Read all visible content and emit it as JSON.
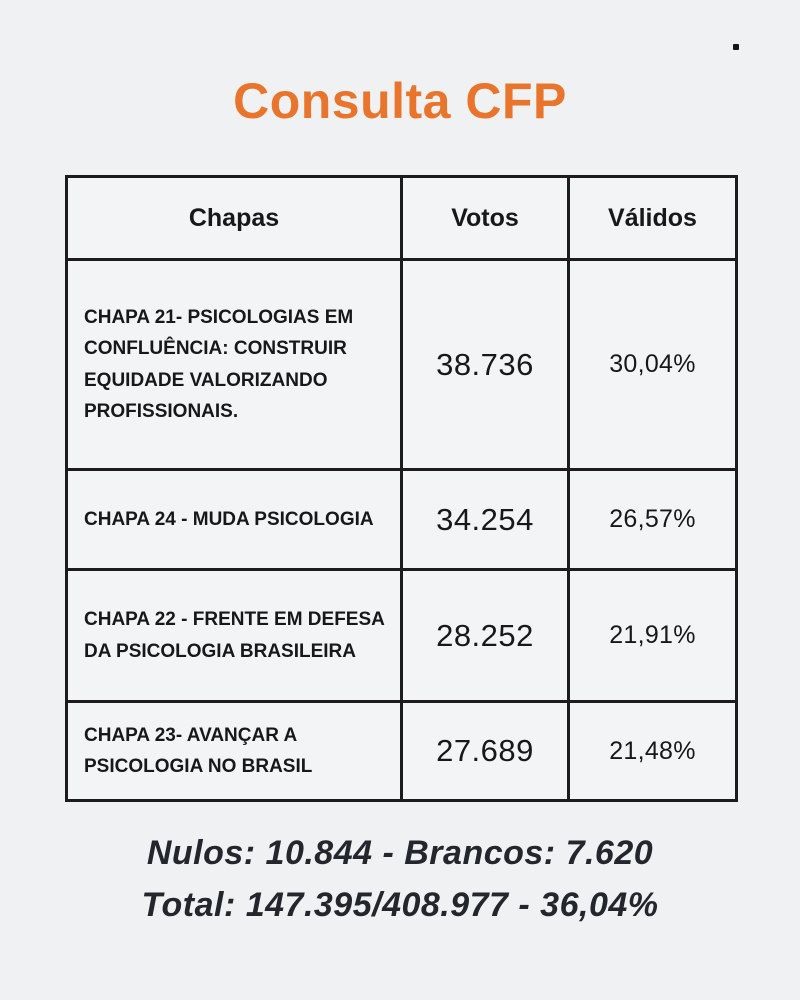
{
  "page": {
    "title": "Consulta CFP",
    "accent_color": "#e8752b",
    "background_color": "#f0f1f3",
    "border_color": "#1c1c1e",
    "text_color": "#17181a"
  },
  "table": {
    "headers": [
      "Chapas",
      "Votos",
      "Válidos"
    ],
    "rows": [
      {
        "chapa": "CHAPA 21- PSICOLOGIAS EM CONFLUÊNCIA: CONSTRUIR EQUIDADE VALORIZANDO PROFISSIONAIS.",
        "votos": "38.736",
        "validos": "30,04%"
      },
      {
        "chapa": "CHAPA 24 - MUDA PSICOLOGIA",
        "votos": "34.254",
        "validos": "26,57%"
      },
      {
        "chapa": "CHAPA 22 - FRENTE EM DEFESA DA PSICOLOGIA BRASILEIRA",
        "votos": "28.252",
        "validos": "21,91%"
      },
      {
        "chapa": "CHAPA 23- AVANÇAR A PSICOLOGIA NO BRASIL",
        "votos": "27.689",
        "validos": "21,48%"
      }
    ]
  },
  "footer": {
    "line1": "Nulos: 10.844 - Brancos: 7.620",
    "line2": "Total: 147.395/408.977 - 36,04%"
  },
  "chart_data": {
    "type": "table",
    "title": "Consulta CFP",
    "columns": [
      "Chapas",
      "Votos",
      "Válidos"
    ],
    "rows": [
      [
        "CHAPA 21- PSICOLOGIAS EM CONFLUÊNCIA: CONSTRUIR EQUIDADE VALORIZANDO PROFISSIONAIS.",
        "38.736",
        "30,04%"
      ],
      [
        "CHAPA 24 - MUDA PSICOLOGIA",
        "34.254",
        "26,57%"
      ],
      [
        "CHAPA 22 - FRENTE EM DEFESA DA PSICOLOGIA BRASILEIRA",
        "28.252",
        "21,91%"
      ],
      [
        "CHAPA 23- AVANÇAR A PSICOLOGIA NO BRASIL",
        "27.689",
        "21,48%"
      ]
    ],
    "votes_numeric": [
      38736,
      34254,
      28252,
      27689
    ],
    "valid_pct_numeric": [
      30.04,
      26.57,
      21.91,
      21.48
    ],
    "nulos": 10844,
    "brancos": 7620,
    "total_votos": 147395,
    "eleitorado": 408977,
    "participacao_pct": 36.04
  }
}
